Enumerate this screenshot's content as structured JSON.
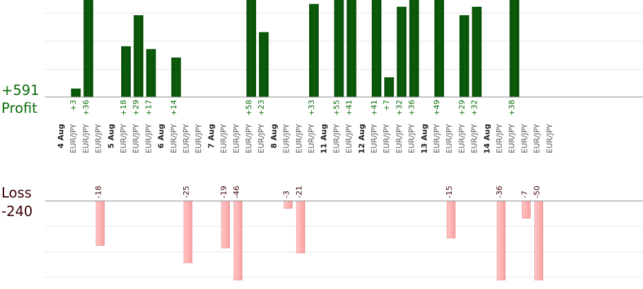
{
  "chart_data": {
    "type": "bar",
    "profit_total": "+591",
    "profit_label": "Profit",
    "loss_label": "Loss",
    "loss_total": "-240",
    "colors": {
      "profit": "#0b5d0b",
      "loss": "#ffb3b3",
      "loss_border": "#e08a8a",
      "profit_text": "#0b6b0b",
      "loss_text": "#3a0000",
      "date_text": "#222222",
      "pair_text": "#555555"
    },
    "pair_label": "EUR/JPY",
    "groups": [
      {
        "date": "4 Aug",
        "profits": [
          "+3",
          "+36",
          ""
        ],
        "losses": [
          "",
          "",
          "-18"
        ]
      },
      {
        "date": "5 Aug",
        "profits": [
          "+18",
          "+29",
          "+17"
        ],
        "losses": [
          "",
          "",
          ""
        ]
      },
      {
        "date": "6 Aug",
        "profits": [
          "+14",
          "",
          ""
        ],
        "losses": [
          "",
          "-25",
          ""
        ]
      },
      {
        "date": "7 Aug",
        "profits": [
          "",
          "",
          "+58",
          "+23"
        ],
        "losses": [
          "-19",
          "-46",
          "",
          ""
        ]
      },
      {
        "date": "8 Aug",
        "profits": [
          "",
          "",
          "+33"
        ],
        "losses": [
          "-3",
          "-21",
          ""
        ]
      },
      {
        "date": "11 Aug",
        "profits": [
          "+55",
          "+41"
        ],
        "losses": [
          "",
          ""
        ]
      },
      {
        "date": "12 Aug",
        "profits": [
          "+41",
          "+7",
          "+32",
          "+36"
        ],
        "losses": [
          "",
          "",
          "",
          ""
        ]
      },
      {
        "date": "13 Aug",
        "profits": [
          "+49",
          "",
          "+29",
          "+32"
        ],
        "losses": [
          "",
          "-15",
          "",
          ""
        ]
      },
      {
        "date": "14 Aug",
        "profits": [
          "",
          "+38",
          "",
          "",
          ""
        ],
        "losses": [
          "-36",
          "",
          "-7",
          "-50",
          ""
        ]
      }
    ],
    "grid": true
  }
}
